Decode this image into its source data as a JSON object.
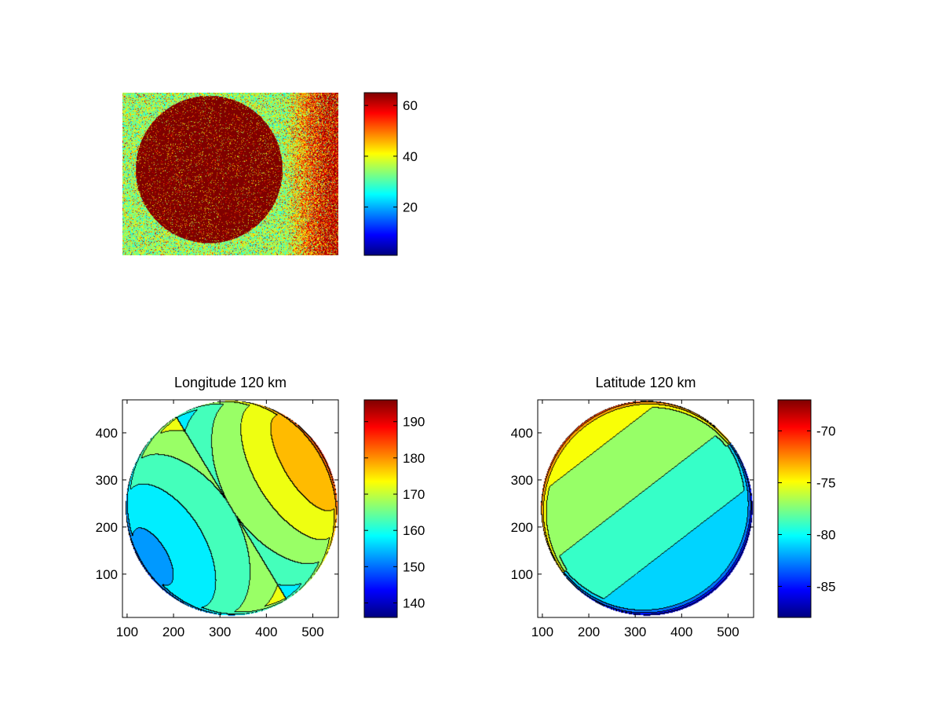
{
  "figure": {
    "background": "#ffffff"
  },
  "colormap": {
    "name": "jet",
    "stops": [
      "#00007f",
      "#0000ff",
      "#007fff",
      "#00ffff",
      "#7fff7f",
      "#ffff00",
      "#ff7f00",
      "#ff0000",
      "#7f0000"
    ]
  },
  "chart_data": [
    {
      "id": "raw",
      "type": "heatmap",
      "title": "",
      "description_of_field": "noisy image: bright disk on noisy background",
      "axes_visible": false,
      "colorbar": {
        "range": [
          1,
          65
        ],
        "ticks": [
          20,
          40,
          60
        ]
      }
    },
    {
      "id": "longitude",
      "type": "heatmap",
      "title": "Longitude 120 km",
      "xlim": [
        90,
        555
      ],
      "ylim": [
        8,
        470
      ],
      "xticks": [
        100,
        200,
        300,
        400,
        500
      ],
      "yticks": [
        100,
        200,
        300,
        400
      ],
      "disk": {
        "center": [
          325,
          240
        ],
        "radius": 228
      },
      "contour_levels_approx": [
        140,
        145,
        150,
        155,
        160,
        165,
        170,
        175,
        180,
        185,
        190
      ],
      "colorbar": {
        "range": [
          136,
          196
        ],
        "ticks": [
          140,
          150,
          160,
          170,
          180,
          190
        ]
      }
    },
    {
      "id": "latitude",
      "type": "heatmap",
      "title": "Latitude 120 km",
      "xlim": [
        90,
        555
      ],
      "ylim": [
        8,
        470
      ],
      "xticks": [
        100,
        200,
        300,
        400,
        500
      ],
      "yticks": [
        100,
        200,
        300,
        400
      ],
      "disk": {
        "center": [
          325,
          240
        ],
        "radius": 228
      },
      "contour_levels_approx": [
        -86,
        -84,
        -82,
        -80,
        -78,
        -76,
        -74,
        -72,
        -70
      ],
      "colorbar": {
        "range": [
          -88,
          -67
        ],
        "ticks": [
          -85,
          -80,
          -75,
          -70
        ]
      }
    }
  ]
}
